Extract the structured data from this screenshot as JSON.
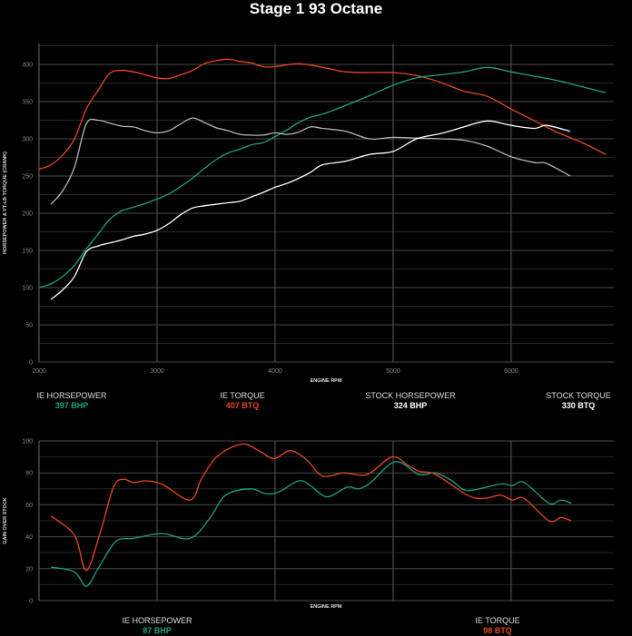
{
  "colors": {
    "ie_horsepower": "#1aa37f",
    "ie_torque": "#e8461e",
    "stock_horsepower": "#ffffff",
    "stock_torque": "#b4b4b4",
    "grid": "#3a3a3a",
    "background": "#000000"
  },
  "title": "Stage 1 93 Octane",
  "legend_top": [
    {
      "label": "IE HORSEPOWER",
      "value": "397 BHP",
      "color": "#1aa37f"
    },
    {
      "label": "IE TORQUE",
      "value": "407 BTQ",
      "color": "#e8461e"
    },
    {
      "label": "STOCK HORSEPOWER",
      "value": "324 BHP",
      "color": "#ffffff"
    },
    {
      "label": "STOCK TORQUE",
      "value": "330 BTQ",
      "color": "#ffffff"
    }
  ],
  "legend_bottom": [
    {
      "label": "IE HORSEPOWER",
      "value": "87 BHP",
      "color": "#1aa37f"
    },
    {
      "label": "IE TORQUE",
      "value": "98 BTQ",
      "color": "#e8461e"
    }
  ],
  "chart_data": [
    {
      "type": "line",
      "title": "Stage 1 93 Octane",
      "xlabel": "ENGINE RPM",
      "ylabel": "HORSEPOWER & FT-LB TORQUE (CRANK)",
      "xlim": [
        2000,
        6870
      ],
      "ylim": [
        0,
        425
      ],
      "xticks": [
        2000,
        3000,
        4000,
        5000,
        6000
      ],
      "yticks": [
        0,
        50,
        100,
        150,
        200,
        250,
        300,
        350,
        400
      ],
      "grid": true,
      "series": [
        {
          "name": "IE TORQUE",
          "color": "#e8461e",
          "x": [
            2000,
            2100,
            2200,
            2300,
            2400,
            2500,
            2600,
            2700,
            2800,
            2900,
            3000,
            3100,
            3200,
            3300,
            3400,
            3500,
            3600,
            3700,
            3800,
            3900,
            4000,
            4200,
            4400,
            4600,
            4800,
            5000,
            5200,
            5400,
            5600,
            5800,
            6000,
            6200,
            6400,
            6600,
            6800
          ],
          "y": [
            259,
            265,
            278,
            300,
            340,
            365,
            388,
            392,
            390,
            386,
            382,
            381,
            386,
            392,
            401,
            405,
            407,
            404,
            402,
            397,
            397,
            401,
            396,
            390,
            389,
            389,
            385,
            376,
            364,
            357,
            340,
            324,
            308,
            295,
            279
          ]
        },
        {
          "name": "IE HORSEPOWER",
          "color": "#1aa37f",
          "x": [
            2000,
            2100,
            2200,
            2300,
            2400,
            2500,
            2600,
            2700,
            2800,
            2900,
            3000,
            3100,
            3200,
            3300,
            3400,
            3500,
            3600,
            3700,
            3800,
            3900,
            4000,
            4100,
            4200,
            4300,
            4400,
            4600,
            4800,
            5000,
            5200,
            5400,
            5600,
            5800,
            6000,
            6200,
            6400,
            6600,
            6800
          ],
          "y": [
            100,
            105,
            115,
            130,
            152,
            172,
            192,
            203,
            208,
            213,
            219,
            226,
            236,
            247,
            260,
            272,
            281,
            286,
            292,
            295,
            303,
            312,
            322,
            329,
            333,
            345,
            358,
            372,
            382,
            386,
            390,
            396,
            390,
            384,
            378,
            370,
            362
          ]
        },
        {
          "name": "STOCK TORQUE",
          "color": "#b4b4b4",
          "x": [
            2100,
            2200,
            2300,
            2400,
            2500,
            2600,
            2700,
            2800,
            2900,
            3000,
            3100,
            3200,
            3300,
            3400,
            3500,
            3600,
            3700,
            3800,
            3900,
            4000,
            4100,
            4200,
            4300,
            4400,
            4600,
            4800,
            5000,
            5200,
            5400,
            5600,
            5800,
            6000,
            6200,
            6300,
            6500
          ],
          "y": [
            212,
            230,
            262,
            320,
            325,
            321,
            317,
            316,
            311,
            308,
            311,
            320,
            328,
            322,
            315,
            311,
            306,
            305,
            305,
            308,
            306,
            309,
            316,
            314,
            310,
            300,
            302,
            301,
            300,
            298,
            290,
            276,
            268,
            267,
            250
          ]
        },
        {
          "name": "STOCK HORSEPOWER",
          "color": "#ffffff",
          "x": [
            2100,
            2200,
            2300,
            2400,
            2500,
            2600,
            2700,
            2800,
            2900,
            3000,
            3100,
            3200,
            3300,
            3400,
            3500,
            3600,
            3700,
            3800,
            3900,
            4000,
            4100,
            4200,
            4300,
            4400,
            4600,
            4800,
            5000,
            5200,
            5400,
            5600,
            5800,
            6000,
            6200,
            6300,
            6500
          ],
          "y": [
            84,
            97,
            115,
            148,
            156,
            160,
            164,
            169,
            172,
            177,
            186,
            198,
            207,
            210,
            212,
            214,
            216,
            222,
            228,
            235,
            240,
            247,
            255,
            265,
            270,
            279,
            283,
            300,
            307,
            316,
            324,
            318,
            314,
            318,
            310
          ]
        }
      ]
    },
    {
      "type": "line",
      "xlabel": "ENGINE RPM",
      "ylabel": "GAIN OVER STOCK",
      "xlim": [
        2000,
        6870
      ],
      "ylim": [
        0,
        100
      ],
      "yticks": [
        0,
        20,
        40,
        60,
        80,
        100
      ],
      "grid": true,
      "series": [
        {
          "name": "IE HORSEPOWER",
          "color": "#1aa37f",
          "x": [
            2100,
            2300,
            2400,
            2500,
            2650,
            2800,
            3040,
            3280,
            3450,
            3580,
            3790,
            3920,
            4030,
            4200,
            4300,
            4440,
            4610,
            4710,
            4810,
            5020,
            5220,
            5360,
            5500,
            5630,
            5910,
            6010,
            6110,
            6320,
            6420,
            6510
          ],
          "y": [
            21,
            18,
            9,
            20,
            37,
            39,
            42,
            39,
            52,
            66,
            70,
            67,
            68,
            75,
            72,
            65,
            71,
            70,
            74,
            87,
            79,
            80,
            75,
            69,
            73,
            72,
            74,
            61,
            63,
            61
          ]
        },
        {
          "name": "IE TORQUE",
          "color": "#e8461e",
          "x": [
            2100,
            2300,
            2400,
            2520,
            2630,
            2710,
            2800,
            2900,
            3040,
            3280,
            3380,
            3520,
            3720,
            3860,
            3990,
            4130,
            4270,
            4400,
            4580,
            4780,
            4990,
            5120,
            5220,
            5360,
            5630,
            5770,
            5910,
            6010,
            6110,
            6320,
            6420,
            6510
          ],
          "y": [
            53,
            41,
            19,
            43,
            71,
            76,
            74,
            75,
            73,
            63,
            77,
            91,
            98,
            94,
            89,
            94,
            88,
            78,
            80,
            79,
            90,
            85,
            81,
            79,
            66,
            64,
            66,
            63,
            64,
            50,
            52,
            50
          ]
        }
      ]
    }
  ]
}
